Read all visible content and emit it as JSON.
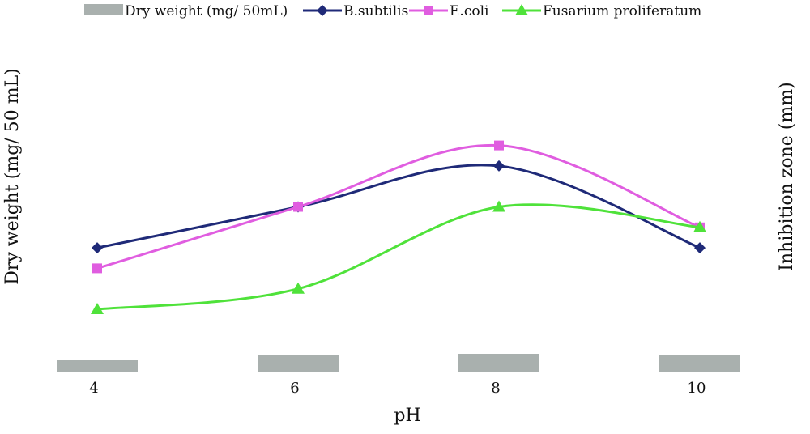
{
  "chart_data": {
    "type": "bar+line",
    "xlabel": "pH",
    "ylabel_left": "Dry weight (mg/ 50 mL)",
    "ylabel_right": "Inhibition zone (mm)",
    "categories": [
      "4",
      "6",
      "8",
      "10"
    ],
    "bar_series": {
      "name": "Dry weight (mg/ 50mL)",
      "values": [
        1.5,
        2.1,
        2.3,
        2.1
      ],
      "ylim": [
        0,
        20
      ],
      "color": "#a9b0ae"
    },
    "line_series": [
      {
        "name": "B.subtilis",
        "values": [
          11,
          13,
          15,
          11
        ],
        "color": "#1f2a78",
        "marker": "diamond"
      },
      {
        "name": "E.coli",
        "values": [
          10,
          13,
          16,
          12
        ],
        "color": "#e05de0",
        "marker": "square"
      },
      {
        "name": "Fusarium proliferatum",
        "values": [
          8,
          9,
          13,
          12
        ],
        "color": "#4fe23a",
        "marker": "triangle"
      }
    ],
    "line_ylim": [
      0,
      18
    ],
    "legend": {
      "placement": "top"
    },
    "grid": false
  }
}
